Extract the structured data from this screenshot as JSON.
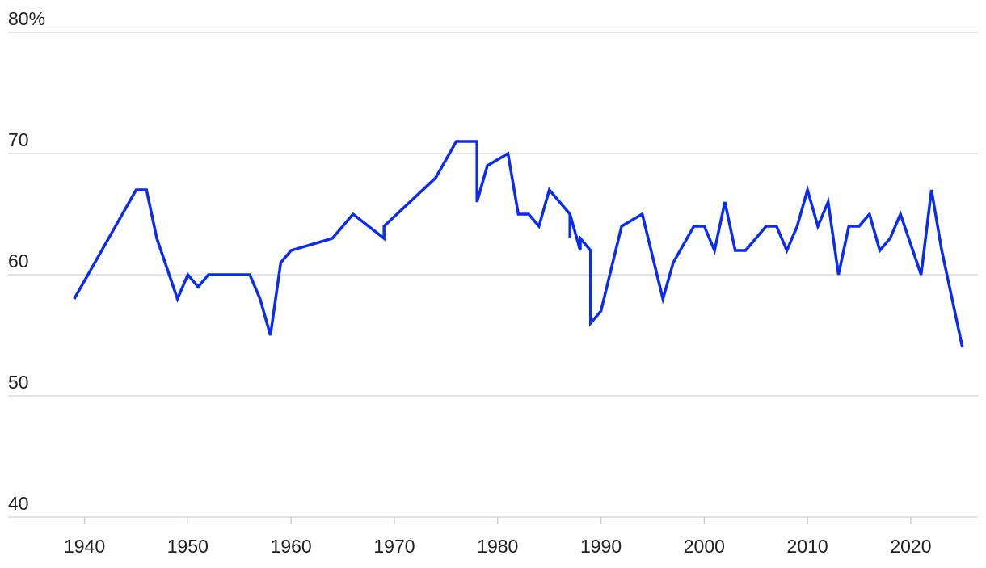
{
  "chart_data": {
    "type": "line",
    "x": [
      1939,
      1945,
      1946,
      1947,
      1949,
      1950,
      1951,
      1952,
      1956,
      1957,
      1958,
      1959,
      1960,
      1964,
      1966,
      1969,
      1969,
      1974,
      1976,
      1978,
      1978,
      1979,
      1981,
      1982,
      1983,
      1984,
      1985,
      1987,
      1987,
      1987,
      1988,
      1988,
      1989,
      1989,
      1990,
      1992,
      1994,
      1996,
      1997,
      1999,
      2000,
      2001,
      2002,
      2003,
      2004,
      2006,
      2007,
      2008,
      2009,
      2010,
      2011,
      2012,
      2013,
      2014,
      2015,
      2016,
      2017,
      2018,
      2019,
      2021,
      2022,
      2023,
      2025
    ],
    "series": [
      {
        "color": "#0a2cf0",
        "values": [
          58,
          67,
          67,
          63,
          58,
          60,
          59,
          60,
          60,
          58,
          55,
          61,
          62,
          63,
          65,
          63,
          64,
          68,
          71,
          71,
          66,
          69,
          70,
          65,
          65,
          64,
          67,
          65,
          63,
          65,
          62,
          63,
          62,
          56,
          57,
          64,
          65,
          58,
          61,
          64,
          64,
          62,
          66,
          62,
          62,
          64,
          64,
          62,
          64,
          67,
          64,
          66,
          60,
          64,
          64,
          65,
          62,
          63,
          65,
          60,
          67,
          62,
          54
        ]
      }
    ],
    "xlim": [
      1932.6,
      2026.5
    ],
    "xticks": [
      1940,
      1950,
      1960,
      1970,
      1980,
      1990,
      2000,
      2010,
      2020
    ],
    "ylim": [
      40,
      80
    ],
    "yticks": [
      40,
      50,
      60,
      70,
      {
        "value": 80,
        "label": "80%"
      }
    ],
    "grid": true
  }
}
